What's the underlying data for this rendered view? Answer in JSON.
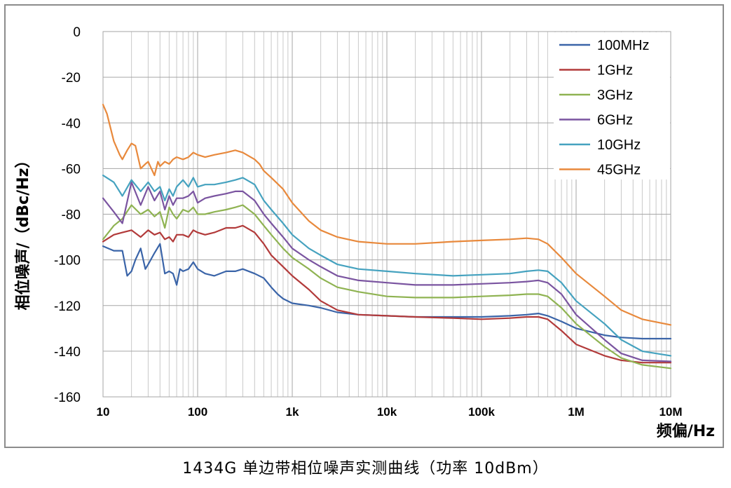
{
  "caption": "1434G 单边带相位噪声实测曲线（功率 10dBm）",
  "chart_data": {
    "type": "line",
    "title": "",
    "xlabel": "频偏/Hz",
    "ylabel": "相位噪声/（dBc/Hz）",
    "x_scale": "log",
    "xlim": [
      10,
      10000000
    ],
    "ylim": [
      -160,
      0
    ],
    "y_ticks": [
      0,
      -20,
      -40,
      -60,
      -80,
      -100,
      -120,
      -140,
      -160
    ],
    "y_tick_labels": [
      "0",
      "-20",
      "-40",
      "-60",
      "-80",
      "-100",
      "-120",
      "-140",
      "-160"
    ],
    "x_ticks": [
      10,
      100,
      1000,
      10000,
      100000,
      1000000,
      10000000
    ],
    "x_tick_labels": [
      "10",
      "100",
      "1k",
      "10k",
      "100k",
      "1M",
      "10M"
    ],
    "grid": true,
    "legend_position": "top-right",
    "series": [
      {
        "name": "100MHz",
        "color": "#3a64a8",
        "x": [
          10,
          13,
          16,
          18,
          20,
          22,
          25,
          28,
          30,
          35,
          40,
          45,
          50,
          55,
          60,
          65,
          70,
          80,
          90,
          100,
          120,
          150,
          200,
          250,
          300,
          400,
          500,
          600,
          700,
          800,
          1000,
          1500,
          2000,
          3000,
          5000,
          10000,
          20000,
          50000,
          100000,
          200000,
          300000,
          400000,
          500000,
          700000,
          1000000,
          2000000,
          3000000,
          5000000,
          10000000
        ],
        "y": [
          -94,
          -96,
          -96,
          -107,
          -105,
          -100,
          -95,
          -104,
          -102,
          -97,
          -93,
          -106,
          -105,
          -106,
          -111,
          -104,
          -105,
          -104,
          -101,
          -104,
          -106,
          -107,
          -105,
          -105,
          -104,
          -106,
          -108,
          -112,
          -115,
          -117,
          -119,
          -120,
          -121,
          -123,
          -124,
          -124.5,
          -125,
          -125,
          -125,
          -124.5,
          -124,
          -123.5,
          -124.5,
          -127,
          -130,
          -133,
          -134,
          -134.5,
          -134.5
        ]
      },
      {
        "name": "1GHz",
        "color": "#b23a3a",
        "x": [
          10,
          13,
          16,
          20,
          25,
          30,
          35,
          40,
          45,
          50,
          55,
          60,
          70,
          80,
          90,
          100,
          120,
          150,
          200,
          250,
          300,
          400,
          500,
          600,
          800,
          1000,
          1500,
          2000,
          3000,
          5000,
          10000,
          20000,
          50000,
          100000,
          200000,
          300000,
          400000,
          500000,
          700000,
          1000000,
          2000000,
          3000000,
          5000000,
          10000000
        ],
        "y": [
          -92,
          -89,
          -88,
          -87,
          -90,
          -87,
          -89,
          -88,
          -91,
          -90,
          -92,
          -89,
          -89,
          -90,
          -87,
          -88,
          -89,
          -88,
          -86,
          -86,
          -85,
          -88,
          -93,
          -98,
          -103,
          -107,
          -113,
          -118,
          -122,
          -124,
          -124.5,
          -125,
          -125.5,
          -126,
          -125.5,
          -125,
          -125,
          -126,
          -131,
          -137,
          -142,
          -144,
          -145,
          -145
        ]
      },
      {
        "name": "3GHz",
        "color": "#8fb352",
        "x": [
          10,
          13,
          16,
          20,
          25,
          30,
          35,
          40,
          45,
          50,
          55,
          60,
          70,
          80,
          90,
          100,
          120,
          150,
          200,
          250,
          300,
          400,
          500,
          600,
          800,
          1000,
          1500,
          2000,
          3000,
          5000,
          10000,
          20000,
          50000,
          100000,
          200000,
          300000,
          400000,
          500000,
          700000,
          1000000,
          2000000,
          3000000,
          5000000,
          10000000
        ],
        "y": [
          -91,
          -85,
          -82,
          -76,
          -80,
          -78,
          -81,
          -79,
          -86,
          -77,
          -80,
          -82,
          -78,
          -79,
          -77,
          -80,
          -80,
          -79,
          -78,
          -77,
          -76,
          -80,
          -85,
          -89,
          -95,
          -99,
          -104,
          -108,
          -112,
          -114,
          -116,
          -116.5,
          -116.5,
          -116,
          -115.5,
          -115,
          -115,
          -116,
          -121,
          -128,
          -138,
          -143,
          -146,
          -147.5
        ]
      },
      {
        "name": "6GHz",
        "color": "#7a54a0",
        "x": [
          10,
          13,
          16,
          20,
          25,
          30,
          35,
          40,
          45,
          50,
          55,
          60,
          70,
          80,
          90,
          100,
          120,
          150,
          200,
          250,
          300,
          400,
          500,
          600,
          800,
          1000,
          1500,
          2000,
          3000,
          5000,
          10000,
          20000,
          50000,
          100000,
          200000,
          300000,
          400000,
          500000,
          700000,
          1000000,
          2000000,
          3000000,
          5000000,
          10000000
        ],
        "y": [
          -73,
          -79,
          -84,
          -66,
          -76,
          -68,
          -74,
          -70,
          -78,
          -72,
          -76,
          -73,
          -73,
          -72,
          -70,
          -75,
          -73,
          -72,
          -71,
          -70,
          -70,
          -74,
          -80,
          -84,
          -90,
          -95,
          -100,
          -103,
          -107,
          -109,
          -110,
          -111,
          -111,
          -110.5,
          -110,
          -109.5,
          -109,
          -110,
          -115,
          -124,
          -135,
          -141,
          -144,
          -144.5
        ]
      },
      {
        "name": "10GHz",
        "color": "#45a2bf",
        "x": [
          10,
          13,
          16,
          20,
          25,
          30,
          35,
          40,
          45,
          50,
          55,
          60,
          70,
          80,
          90,
          100,
          120,
          150,
          200,
          250,
          300,
          400,
          500,
          600,
          800,
          1000,
          1500,
          2000,
          3000,
          5000,
          10000,
          20000,
          50000,
          100000,
          200000,
          300000,
          400000,
          500000,
          700000,
          1000000,
          2000000,
          3000000,
          5000000,
          10000000
        ],
        "y": [
          -63,
          -66,
          -72,
          -65,
          -70,
          -66,
          -70,
          -68,
          -74,
          -69,
          -72,
          -68,
          -65,
          -68,
          -64,
          -68,
          -67,
          -67,
          -66,
          -65,
          -64,
          -67,
          -74,
          -78,
          -84,
          -89,
          -95,
          -98,
          -102,
          -104,
          -105,
          -106,
          -107,
          -106.5,
          -106,
          -105,
          -104.5,
          -105,
          -110,
          -118,
          -128,
          -135,
          -140,
          -142
        ]
      },
      {
        "name": "45GHz",
        "color": "#e8893c",
        "x": [
          10,
          11,
          13,
          15,
          16,
          18,
          20,
          22,
          25,
          28,
          30,
          35,
          38,
          40,
          45,
          50,
          55,
          60,
          70,
          80,
          90,
          100,
          120,
          150,
          200,
          250,
          300,
          400,
          450,
          500,
          600,
          800,
          1000,
          1500,
          2000,
          3000,
          5000,
          10000,
          20000,
          50000,
          100000,
          200000,
          300000,
          400000,
          500000,
          700000,
          1000000,
          2000000,
          3000000,
          5000000,
          10000000
        ],
        "y": [
          -32,
          -36,
          -48,
          -54,
          -56,
          -52,
          -49,
          -50,
          -60,
          -58,
          -57,
          -63,
          -57,
          -59,
          -57,
          -58,
          -56,
          -55,
          -56,
          -55,
          -53,
          -54,
          -55,
          -54,
          -53,
          -52,
          -53,
          -56,
          -58,
          -61,
          -64,
          -69,
          -75,
          -83,
          -87,
          -90,
          -92,
          -93,
          -93,
          -92,
          -91.5,
          -91,
          -90.5,
          -91,
          -93,
          -99,
          -106,
          -116,
          -122,
          -126,
          -128.5
        ]
      }
    ]
  }
}
